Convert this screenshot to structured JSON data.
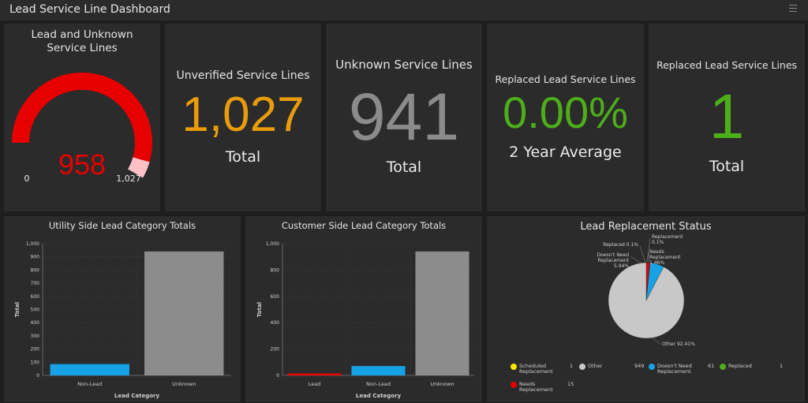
{
  "header": {
    "title": "Lead Service Line Dashboard"
  },
  "gauge": {
    "title": "Lead and Unknown Service Lines",
    "value": "958",
    "min": "0",
    "max": "1,027",
    "value_num": 958,
    "max_num": 1027,
    "color": "#e60000",
    "remainder_color": "#ffc0c6"
  },
  "kpi_unverified": {
    "title": "Unverified Service Lines",
    "value": "1,027",
    "sub": "Total",
    "color": "#e89c0b"
  },
  "kpi_unknown": {
    "title": "Unknown Service Lines",
    "value": "941",
    "sub": "Total",
    "color": "#8b8b8b"
  },
  "kpi_replaced_pct": {
    "title": "Replaced Lead Service Lines",
    "value": "0.00%",
    "sub": "2 Year Average",
    "color": "#4caf1a"
  },
  "kpi_replaced": {
    "title": "Replaced Lead Service Lines",
    "value": "1",
    "sub": "Total",
    "color": "#4caf1a"
  },
  "chart_data": [
    {
      "type": "bar",
      "title": "Utility Side Lead Category Totals",
      "xlabel": "Lead Category",
      "ylabel": "Total",
      "ylim": [
        0,
        1000
      ],
      "yticks": [
        "0",
        "100",
        "200",
        "300",
        "400",
        "500",
        "600",
        "700",
        "800",
        "900",
        "1,000"
      ],
      "categories": [
        "Non-Lead",
        "Unknown"
      ],
      "values": [
        86,
        941
      ],
      "colors": [
        "#17a2e6",
        "#8c8c8c"
      ]
    },
    {
      "type": "bar",
      "title": "Customer Side Lead Category Totals",
      "xlabel": "Lead Category",
      "ylabel": "Total",
      "ylim": [
        0,
        1000
      ],
      "yticks": [
        "0",
        "200",
        "400",
        "600",
        "800",
        "1,000"
      ],
      "categories": [
        "Lead",
        "Non-Lead",
        "Unknown"
      ],
      "values": [
        15,
        71,
        941
      ],
      "colors": [
        "#e60000",
        "#17a2e6",
        "#8c8c8c"
      ]
    },
    {
      "type": "pie",
      "title": "Lead Replacement Status",
      "slices": [
        {
          "label": "Other",
          "value": 949,
          "pct_label": "Other 92.41%",
          "color": "#c8c8c8"
        },
        {
          "label": "Doesn't Need Replacement",
          "value": 61,
          "pct_label": "Doesn't Need Replacement 5.94%",
          "color": "#17a2e6"
        },
        {
          "label": "Replaced",
          "value": 1,
          "pct_label": "Replaced 0.1%",
          "color": "#4caf1a"
        },
        {
          "label": "Scheduled Replacement",
          "value": 1,
          "pct_label": "Replacement 0.1%",
          "color": "#ffe600"
        },
        {
          "label": "Needs Replacement",
          "value": 15,
          "pct_label": "Needs Replacement 1.46%",
          "color": "#e60000"
        }
      ],
      "legend": [
        {
          "label": "Scheduled Replacement",
          "count": "1",
          "color": "#ffe600"
        },
        {
          "label": "Other",
          "count": "949",
          "color": "#c8c8c8"
        },
        {
          "label": "Doesn't Need Replacement",
          "count": "61",
          "color": "#17a2e6"
        },
        {
          "label": "Replaced",
          "count": "1",
          "color": "#4caf1a"
        },
        {
          "label": "Needs Replacement",
          "count": "15",
          "color": "#e60000"
        }
      ]
    }
  ]
}
